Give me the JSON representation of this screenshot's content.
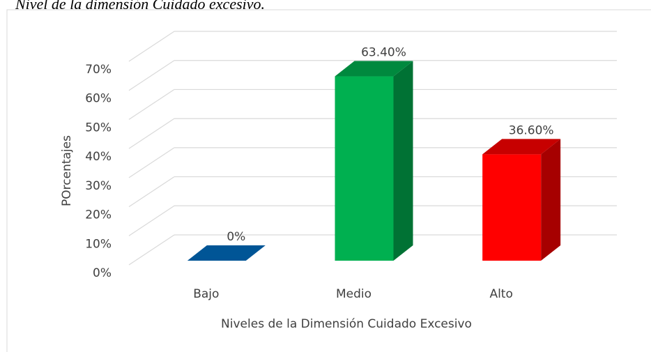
{
  "chart_data": {
    "type": "bar3d",
    "title": "Nivel de la dimensión Cuidado excesivo.",
    "x_label": "Niveles de la Dimensión Cuidado Excesivo",
    "y_label": "POrcentajes",
    "categories": [
      "Bajo",
      "Medio",
      "Alto"
    ],
    "values": [
      0,
      63.4,
      36.6
    ],
    "value_labels": [
      "0%",
      "63.40%",
      "36.60%"
    ],
    "colors": [
      "#005596",
      "#00b050",
      "#ff0000"
    ],
    "ylim": [
      0,
      70
    ],
    "yticks": [
      {
        "value": 0,
        "label": "0%"
      },
      {
        "value": 10,
        "label": "10%"
      },
      {
        "value": 20,
        "label": "20%"
      },
      {
        "value": 30,
        "label": "30%"
      },
      {
        "value": 40,
        "label": "40%"
      },
      {
        "value": 50,
        "label": "50%"
      },
      {
        "value": 60,
        "label": "60%"
      },
      {
        "value": 70,
        "label": "70%"
      }
    ],
    "grid": true
  }
}
